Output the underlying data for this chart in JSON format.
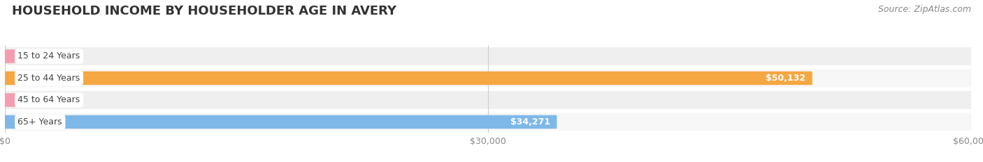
{
  "title": "HOUSEHOLD INCOME BY HOUSEHOLDER AGE IN AVERY",
  "source": "Source: ZipAtlas.com",
  "categories": [
    "15 to 24 Years",
    "25 to 44 Years",
    "45 to 64 Years",
    "65+ Years"
  ],
  "values": [
    0,
    50132,
    0,
    34271
  ],
  "bar_colors": [
    "#f59cb0",
    "#f5a742",
    "#f59cb0",
    "#7eb8e8"
  ],
  "row_bg_even": "#efefef",
  "row_bg_odd": "#f7f7f7",
  "label_bg_color": "#ffffff",
  "xlim": [
    0,
    60000
  ],
  "xticks": [
    0,
    30000,
    60000
  ],
  "xtick_labels": [
    "$0",
    "$30,000",
    "$60,000"
  ],
  "title_fontsize": 13,
  "source_fontsize": 9,
  "bar_label_fontsize": 9,
  "tick_fontsize": 9,
  "category_fontsize": 9,
  "background_color": "#ffffff"
}
